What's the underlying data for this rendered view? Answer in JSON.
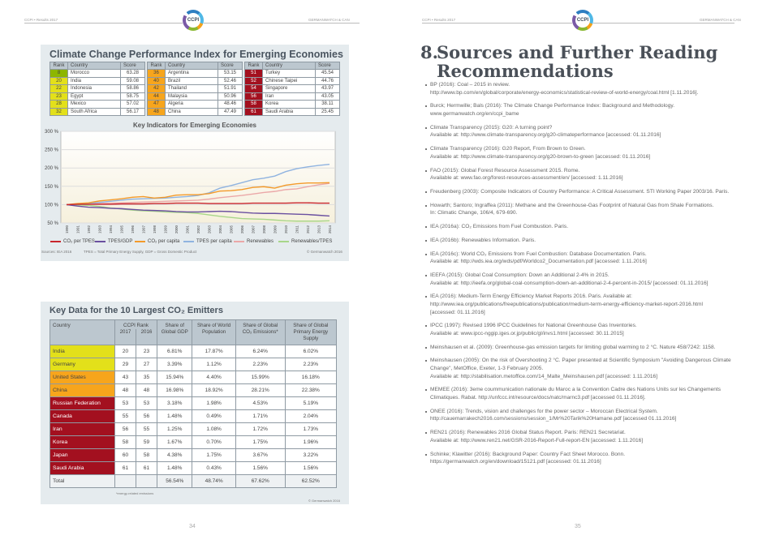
{
  "header": {
    "left_text": "CCPI • Results 2017",
    "right_text": "GERMANWATCH & CAN",
    "logo_text": "CCPI"
  },
  "ranking": {
    "title": "Climate Change Performance Index for Emerging Economies",
    "columns": [
      "Rank",
      "Country",
      "Score"
    ],
    "groups": [
      [
        {
          "rank": "8",
          "country": "Morocco",
          "score": "63.28",
          "color": "g"
        },
        {
          "rank": "20",
          "country": "India",
          "score": "59.08",
          "color": "y"
        },
        {
          "rank": "22",
          "country": "Indonesia",
          "score": "58.86",
          "color": "y"
        },
        {
          "rank": "23",
          "country": "Egypt",
          "score": "58.75",
          "color": "y"
        },
        {
          "rank": "28",
          "country": "Mexico",
          "score": "57.02",
          "color": "y"
        },
        {
          "rank": "32",
          "country": "South Africa",
          "score": "56.17",
          "color": "y"
        }
      ],
      [
        {
          "rank": "36",
          "country": "Argentina",
          "score": "53.15",
          "color": "o"
        },
        {
          "rank": "40",
          "country": "Brazil",
          "score": "52.46",
          "color": "o"
        },
        {
          "rank": "42",
          "country": "Thailand",
          "score": "51.91",
          "color": "o"
        },
        {
          "rank": "44",
          "country": "Malaysia",
          "score": "50.96",
          "color": "o"
        },
        {
          "rank": "47",
          "country": "Algeria",
          "score": "48.46",
          "color": "o"
        },
        {
          "rank": "48",
          "country": "China",
          "score": "47.49",
          "color": "o"
        }
      ],
      [
        {
          "rank": "51",
          "country": "Turkey",
          "score": "45.54",
          "color": "r"
        },
        {
          "rank": "52",
          "country": "Chinese Taipei",
          "score": "44.76",
          "color": "r"
        },
        {
          "rank": "54",
          "country": "Singapore",
          "score": "43.97",
          "color": "r"
        },
        {
          "rank": "56",
          "country": "Iran",
          "score": "43.05",
          "color": "r"
        },
        {
          "rank": "58",
          "country": "Korea",
          "score": "38.11",
          "color": "r"
        },
        {
          "rank": "61",
          "country": "Saudi Arabia",
          "score": "25.45",
          "color": "r"
        }
      ]
    ]
  },
  "chart_data": {
    "type": "line",
    "title": "Key Indicators for Emerging Economies",
    "x": [
      "1990",
      "1991",
      "1992",
      "1993",
      "1994",
      "1995",
      "1996",
      "1997",
      "1998",
      "1999",
      "2000",
      "2001",
      "2002",
      "2003",
      "2004",
      "2005",
      "2006",
      "2007",
      "2008",
      "2009",
      "2010",
      "2011",
      "2012",
      "2013",
      "2014"
    ],
    "ylim": [
      50,
      300
    ],
    "yticks": [
      "50 %",
      "100 %",
      "150 %",
      "200 %",
      "250 %",
      "300 %"
    ],
    "ytick_values": [
      50,
      100,
      150,
      200,
      250,
      300
    ],
    "grid": true,
    "legend_position": "bottom",
    "series": [
      {
        "name": "CO₂ per TPES",
        "color": "#c8252c",
        "values": [
          100,
          101,
          101,
          101,
          101,
          102,
          102,
          102,
          103,
          103,
          104,
          104,
          104,
          103,
          103,
          103,
          103,
          104,
          104,
          104,
          104,
          105,
          105,
          104,
          104
        ]
      },
      {
        "name": "TPES/GDP",
        "color": "#6a4fa0",
        "values": [
          100,
          96,
          93,
          92,
          90,
          89,
          87,
          85,
          84,
          83,
          81,
          80,
          80,
          81,
          82,
          81,
          79,
          77,
          76,
          76,
          75,
          74,
          73,
          71,
          69
        ]
      },
      {
        "name": "CO₂ per capita",
        "color": "#f39a2a",
        "values": [
          100,
          103,
          105,
          110,
          113,
          116,
          120,
          122,
          118,
          120,
          126,
          127,
          127,
          130,
          137,
          138,
          141,
          147,
          149,
          145,
          153,
          157,
          159,
          159,
          160
        ]
      },
      {
        "name": "TPES per capita",
        "color": "#8fb3e0",
        "values": [
          100,
          102,
          104,
          106,
          109,
          112,
          115,
          116,
          117,
          118,
          120,
          122,
          125,
          132,
          145,
          152,
          160,
          168,
          172,
          178,
          190,
          198,
          203,
          207,
          210
        ]
      },
      {
        "name": "Renewables",
        "color": "#eba8a8",
        "values": [
          100,
          101,
          102,
          103,
          104,
          105,
          106,
          107,
          108,
          109,
          110,
          111,
          112,
          115,
          119,
          122,
          125,
          129,
          133,
          136,
          141,
          143,
          149,
          154,
          158
        ]
      },
      {
        "name": "Renewables/TPES",
        "color": "#a8d68a",
        "values": [
          100,
          99,
          98,
          95,
          91,
          88,
          85,
          83,
          82,
          80,
          79,
          78,
          76,
          72,
          68,
          65,
          62,
          61,
          60,
          58,
          56,
          55,
          55,
          55,
          56
        ]
      }
    ],
    "sources": "Sources: IEA 2016",
    "note": "TPES = Total Primary Energy Supply, GDP = Gross Domestic Product",
    "copyright": "© Germanwatch 2016"
  },
  "keydata": {
    "title": "Key Data for the 10 Largest CO₂ Emitters",
    "headers": {
      "country": "Country",
      "ccpi": "CCPI Rank",
      "y2017": "2017",
      "y2016": "2016",
      "gdp": "Share of Global GDP",
      "pop": "Share of World Population",
      "co2": "Share of Global CO₂ Emissions*",
      "tpes": "Share of Global Primary Energy Supply"
    },
    "rows": [
      {
        "country": "India",
        "r17": "20",
        "r16": "23",
        "gdp": "6.81%",
        "pop": "17.87%",
        "co2": "6.24%",
        "tpes": "6.02%",
        "color": "y"
      },
      {
        "country": "Germany",
        "r17": "29",
        "r16": "27",
        "gdp": "3.39%",
        "pop": "1.12%",
        "co2": "2.23%",
        "tpes": "2.23%",
        "color": "y"
      },
      {
        "country": "United States",
        "r17": "43",
        "r16": "35",
        "gdp": "15.94%",
        "pop": "4.40%",
        "co2": "15.99%",
        "tpes": "16.18%",
        "color": "o"
      },
      {
        "country": "China",
        "r17": "48",
        "r16": "48",
        "gdp": "16.98%",
        "pop": "18.92%",
        "co2": "28.21%",
        "tpes": "22.38%",
        "color": "o"
      },
      {
        "country": "Russian Federation",
        "r17": "53",
        "r16": "53",
        "gdp": "3.18%",
        "pop": "1.98%",
        "co2": "4.53%",
        "tpes": "5.19%",
        "color": "r"
      },
      {
        "country": "Canada",
        "r17": "55",
        "r16": "56",
        "gdp": "1.48%",
        "pop": "0.49%",
        "co2": "1.71%",
        "tpes": "2.04%",
        "color": "r"
      },
      {
        "country": "Iran",
        "r17": "56",
        "r16": "55",
        "gdp": "1.25%",
        "pop": "1.08%",
        "co2": "1.72%",
        "tpes": "1.73%",
        "color": "r"
      },
      {
        "country": "Korea",
        "r17": "58",
        "r16": "59",
        "gdp": "1.67%",
        "pop": "0.70%",
        "co2": "1.75%",
        "tpes": "1.96%",
        "color": "r"
      },
      {
        "country": "Japan",
        "r17": "60",
        "r16": "58",
        "gdp": "4.38%",
        "pop": "1.75%",
        "co2": "3.67%",
        "tpes": "3.22%",
        "color": "r"
      },
      {
        "country": "Saudi Arabia",
        "r17": "61",
        "r16": "61",
        "gdp": "1.48%",
        "pop": "0.43%",
        "co2": "1.56%",
        "tpes": "1.56%",
        "color": "r"
      }
    ],
    "total": {
      "label": "Total",
      "gdp": "56.54%",
      "pop": "48.74%",
      "co2": "67.62%",
      "tpes": "62.52%"
    },
    "footnote": "*energy-related emissions",
    "copyright": "© Germanwatch 2016"
  },
  "sources_page": {
    "number": "8.",
    "title_line1": "Sources and Further Reading",
    "title_line2": "Recommendations",
    "references": [
      [
        "BP (2016): Coal – 2015 in review.",
        "http://www.bp.com/en/global/corporate/energy-economics/statistical-review-of-world-energy/coal.html [1.11.2016]."
      ],
      [
        "Burck; Hermwille; Bals (2016): The Climate Change Performance Index: Background and Methodology.",
        "www.germanwatch.org/en/ccpi_bame"
      ],
      [
        "Climate Transparency (2015): G20: A turning point?",
        "Available at: http://www.climate-transparency.org/g20-climateperformance [accessed: 01.11.2016]"
      ],
      [
        "Climate Transparency (2016): G20 Report, From Brown to Green.",
        "Available at: http://www.climate-transparency.org/g20-brown-to-green [accessed: 01.11.2016]"
      ],
      [
        "FAO (2015): Global Forest Resource Assessment 2015. Rome.",
        "Available at: www.fao.org/forest-resources-assessment/en/ [accessed: 1.11.2016]"
      ],
      [
        "Freudenberg (2003): Composite Indicators of Country Performance: A Critical Assessment. STI Working Paper 2003/16. Paris."
      ],
      [
        "Howarth; Santoro; Ingraffea (2011): Methane and the Greenhouse-Gas Footprint of Natural Gas from Shale Formations.",
        "In: Climatic Change, 106/4, 679-690."
      ],
      [
        "IEA (2016a): CO₂ Emissions from Fuel Combustion. Paris."
      ],
      [
        "IEA (2016b): Renewables Information. Paris."
      ],
      [
        "IEA (2016c): World CO₂ Emissions from Fuel Combustion: Database Documentation. Paris.",
        "Available at: http://wds.iea.org/wds/pdf/Worldco2_Documentation.pdf [accessed: 1.11.2016]"
      ],
      [
        "IEEFA (2015): Global Coal Consumption: Down an Additional 2-4% in 2015.",
        "Available at: http://ieefa.org/global-coal-consumption-down-an-additional-2-4-percent-in-2015/ [accessed: 01.11.2016]"
      ],
      [
        "IEA (2016): Medium-Term Energy Efficiency Market Reports 2016. Paris. Available at:",
        "http://www.iea.org/publications/freepublications/publication/medium-term-energy-efficiency-market-report-2016.html",
        "[accessed: 01.11.2016]"
      ],
      [
        "IPCC (1997): Revised 1996 IPCC Guidelines for National Greenhouse Gas Inventories.",
        "Available at: www.ipcc-nggip.iges.or.jp/public/gl/invs1.html [accessed: 30.11.2015]"
      ],
      [
        "Meinshausen et al. (2009): Greenhouse-gas emission targets for limiting global warming to 2 °C. Nature 458/7242: 1158."
      ],
      [
        "Meinshausen (2005): On the risk of Overshooting 2 °C. Paper presented at Scientific Symposium \"Avoiding Dangerous Climate",
        "Change\", MetOffice, Exeter, 1-3 February 2005.",
        "Available at: http://stabilisation.metoffice.com/14_Malte_Meinshausen.pdf [accessed: 1.11.2016]"
      ],
      [
        "MEMEE (2016): 3eme coummunication nationale du Maroc a la Convention Cadre des Nations Units sur les Changements",
        "Climatiques. Rabat. http://unfccc.int/resource/docs/natc/marnc3.pdf [accessed 01.11.2016]."
      ],
      [
        "ONEE (2016): Trends, vision and challenges for the power sector – Moroccan Electrical System.",
        "http://cauemarrakech2016.com/sessions/session_1/Mr%20Tarik%20Hamane.pdf [accessed 01.11.2016]"
      ],
      [
        "REN21 (2016): Renewables 2016 Global Status Report. Paris: REN21 Secretariat.",
        "Available at: http://www.ren21.net/GSR-2016-Report-Full-report-EN [accessed: 1.11.2016]"
      ],
      [
        "Schinke; Klawitter (2016): Background Paper: Country Fact Sheet Morocco. Bonn.",
        "https://germanwatch.org/en/download/15121.pdf [accessed: 01.11.2016]"
      ]
    ]
  },
  "page_numbers": {
    "left": "34",
    "right": "35"
  }
}
